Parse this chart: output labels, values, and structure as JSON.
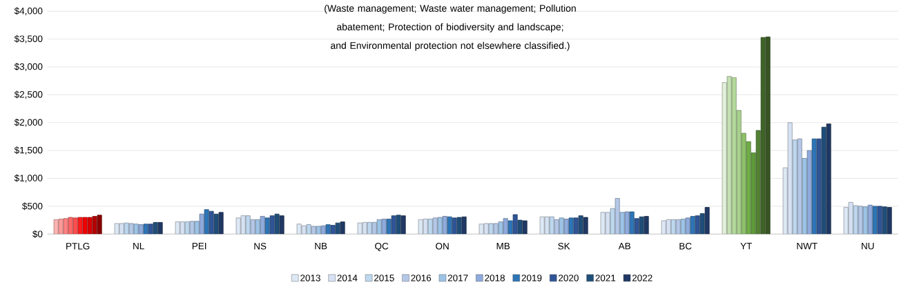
{
  "chart_data": {
    "type": "bar",
    "categories": [
      "PTLG",
      "NL",
      "PEI",
      "NS",
      "NB",
      "QC",
      "ON",
      "MB",
      "SK",
      "AB",
      "BC",
      "YT",
      "NWT",
      "NU"
    ],
    "annotations": [
      "(Waste management; Waste water management; Pollution abatement; Protection of biodiversity and landscape; and Environmental protection not elsewhere classified.)"
    ],
    "ylim": [
      0,
      4000
    ],
    "yticks": [
      {
        "value": 0,
        "label": "$0"
      },
      {
        "value": 500,
        "label": "$500"
      },
      {
        "value": 1000,
        "label": "$1,000"
      },
      {
        "value": 1500,
        "label": "$1,500"
      },
      {
        "value": 2000,
        "label": "$2,000"
      },
      {
        "value": 2500,
        "label": "$2,500"
      },
      {
        "value": 3000,
        "label": "$3,000"
      },
      {
        "value": 3500,
        "label": "$3,500"
      },
      {
        "value": 4000,
        "label": "$4,000"
      }
    ],
    "grid": "y",
    "legend": "bottom",
    "series": [
      {
        "name": "2013",
        "color": "#dde8f5",
        "colors": [
          "#ffb3b3",
          "#dde8f5",
          "#dde8f5",
          "#dde8f5",
          "#dde8f5",
          "#dde8f5",
          "#dde8f5",
          "#dde8f5",
          "#dde8f5",
          "#dde8f5",
          "#dde8f5",
          "#e2efd9",
          "#dde8f5",
          "#dde8f5"
        ],
        "values": [
          260,
          190,
          220,
          290,
          180,
          200,
          260,
          180,
          310,
          390,
          240,
          2720,
          1190,
          480
        ]
      },
      {
        "name": "2014",
        "color": "#d6e2f3",
        "colors": [
          "#ff9a9a",
          "#d6e2f3",
          "#d6e2f3",
          "#d6e2f3",
          "#d6e2f3",
          "#d6e2f3",
          "#d6e2f3",
          "#d6e2f3",
          "#d6e2f3",
          "#d6e2f3",
          "#d6e2f3",
          "#c5e0b3",
          "#d6e2f3",
          "#d6e2f3"
        ],
        "values": [
          270,
          190,
          220,
          330,
          150,
          210,
          270,
          190,
          310,
          390,
          260,
          2830,
          2000,
          570
        ]
      },
      {
        "name": "2015",
        "color": "#bdd7ee",
        "colors": [
          "#ff8080",
          "#bdd7ee",
          "#bdd7ee",
          "#bdd7ee",
          "#bdd7ee",
          "#bdd7ee",
          "#bdd7ee",
          "#bdd7ee",
          "#bdd7ee",
          "#bdd7ee",
          "#bdd7ee",
          "#b4d99b",
          "#bdd7ee",
          "#bdd7ee"
        ],
        "values": [
          280,
          200,
          220,
          330,
          170,
          210,
          270,
          190,
          310,
          460,
          260,
          2810,
          1690,
          510
        ]
      },
      {
        "name": "2016",
        "color": "#b4c7e7",
        "colors": [
          "#ff6666",
          "#b4c7e7",
          "#b4c7e7",
          "#b4c7e7",
          "#b4c7e7",
          "#b4c7e7",
          "#b4c7e7",
          "#b4c7e7",
          "#b4c7e7",
          "#b4c7e7",
          "#b4c7e7",
          "#a9d18e",
          "#b4c7e7",
          "#b4c7e7"
        ],
        "values": [
          300,
          190,
          230,
          260,
          140,
          210,
          290,
          190,
          260,
          640,
          260,
          2220,
          1710,
          500
        ]
      },
      {
        "name": "2017",
        "color": "#9dc3e6",
        "colors": [
          "#ff4d4d",
          "#9dc3e6",
          "#9dc3e6",
          "#9dc3e6",
          "#9dc3e6",
          "#9dc3e6",
          "#9dc3e6",
          "#9dc3e6",
          "#9dc3e6",
          "#9dc3e6",
          "#9dc3e6",
          "#8ec16a",
          "#9dc3e6",
          "#9dc3e6"
        ],
        "values": [
          290,
          180,
          230,
          260,
          140,
          260,
          300,
          220,
          290,
          390,
          270,
          1810,
          1360,
          490
        ]
      },
      {
        "name": "2018",
        "color": "#8faadc",
        "colors": [
          "#ff1a1a",
          "#8faadc",
          "#8faadc",
          "#8faadc",
          "#8faadc",
          "#8faadc",
          "#8faadc",
          "#8faadc",
          "#8faadc",
          "#8faadc",
          "#8faadc",
          "#70ad47",
          "#8faadc",
          "#8faadc"
        ],
        "values": [
          300,
          170,
          360,
          320,
          150,
          270,
          320,
          280,
          270,
          400,
          290,
          1660,
          1500,
          520
        ]
      },
      {
        "name": "2019",
        "color": "#2e75b6",
        "colors": [
          "#f00000",
          "#2e75b6",
          "#2e75b6",
          "#2e75b6",
          "#2e75b6",
          "#2e75b6",
          "#2e75b6",
          "#2e75b6",
          "#2e75b6",
          "#2e75b6",
          "#2e75b6",
          "#5e9a3a",
          "#2e75b6",
          "#2e75b6"
        ],
        "values": [
          300,
          180,
          440,
          290,
          170,
          270,
          310,
          240,
          290,
          400,
          320,
          1460,
          1710,
          500
        ]
      },
      {
        "name": "2020",
        "color": "#2f5597",
        "colors": [
          "#d90000",
          "#2f5597",
          "#2f5597",
          "#2f5597",
          "#2f5597",
          "#2f5597",
          "#2f5597",
          "#2f5597",
          "#2f5597",
          "#2f5597",
          "#2f5597",
          "#548235",
          "#2f5597",
          "#2f5597"
        ],
        "values": [
          300,
          180,
          410,
          330,
          160,
          330,
          290,
          350,
          290,
          280,
          330,
          1860,
          1710,
          500
        ]
      },
      {
        "name": "2021",
        "color": "#1f4e79",
        "colors": [
          "#b30000",
          "#1f4e79",
          "#1f4e79",
          "#1f4e79",
          "#1f4e79",
          "#1f4e79",
          "#1f4e79",
          "#1f4e79",
          "#1f4e79",
          "#1f4e79",
          "#1f4e79",
          "#3f6428",
          "#1f4e79",
          "#1f4e79"
        ],
        "values": [
          320,
          210,
          360,
          360,
          200,
          340,
          300,
          250,
          330,
          310,
          370,
          3530,
          1920,
          490
        ]
      },
      {
        "name": "2022",
        "color": "#203864",
        "colors": [
          "#8b0000",
          "#203864",
          "#203864",
          "#203864",
          "#203864",
          "#203864",
          "#203864",
          "#203864",
          "#203864",
          "#203864",
          "#203864",
          "#375623",
          "#203864",
          "#203864"
        ],
        "values": [
          340,
          210,
          390,
          330,
          220,
          330,
          310,
          240,
          300,
          320,
          480,
          3540,
          1980,
          480
        ]
      }
    ]
  }
}
